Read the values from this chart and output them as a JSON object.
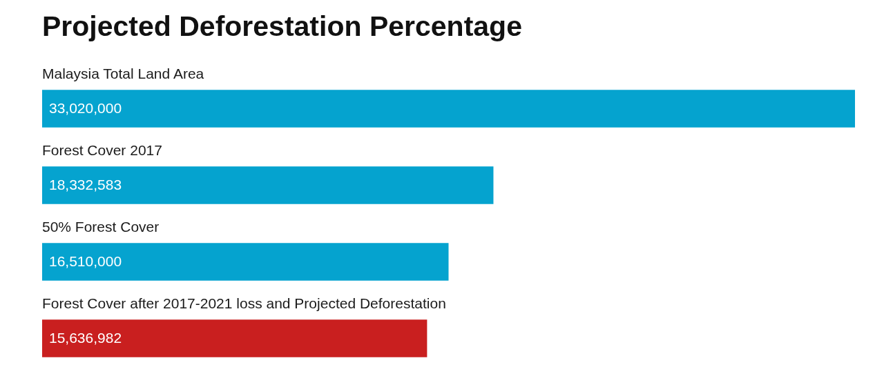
{
  "chart_data": {
    "type": "bar",
    "orientation": "horizontal",
    "title": "Projected Deforestation Percentage",
    "categories": [
      "Malaysia Total Land Area",
      "Forest Cover 2017",
      "50% Forest Cover",
      "Forest Cover after 2017-2021 loss and Projected Deforestation"
    ],
    "values": [
      33020000,
      18332583,
      16510000,
      15636982
    ],
    "colors": [
      "#05a3cf",
      "#05a3cf",
      "#05a3cf",
      "#c91f1f"
    ],
    "value_labels": [
      "33,020,000",
      "18,332,583",
      "16,510,000",
      "15,636,982"
    ]
  }
}
